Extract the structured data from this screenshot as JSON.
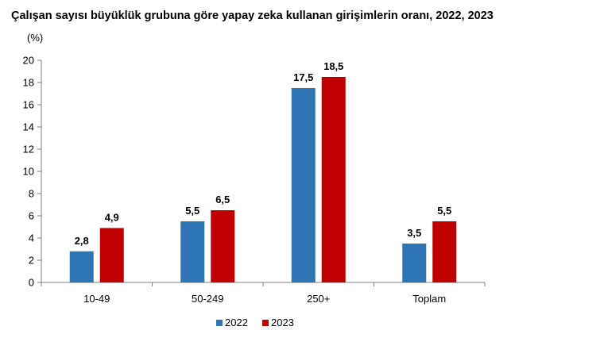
{
  "chart_data": {
    "type": "bar",
    "title": "Çalışan sayısı büyüklük grubuna göre yapay zeka kullanan girişimlerin oranı, 2022, 2023",
    "unit_label": "(%)",
    "xlabel": "",
    "ylabel": "",
    "categories": [
      "10-49",
      "50-249",
      "250+",
      "Toplam"
    ],
    "series": [
      {
        "name": "2022",
        "color": "#2E75B6",
        "values": [
          2.8,
          5.5,
          17.5,
          3.5
        ],
        "labels": [
          "2,8",
          "5,5",
          "17,5",
          "3,5"
        ]
      },
      {
        "name": "2023",
        "color": "#C00000",
        "values": [
          4.9,
          6.5,
          18.5,
          5.5
        ],
        "labels": [
          "4,9",
          "6,5",
          "18,5",
          "5,5"
        ]
      }
    ],
    "ylim": [
      0,
      20
    ],
    "yticks": [
      0,
      2,
      4,
      6,
      8,
      10,
      12,
      14,
      16,
      18,
      20
    ],
    "grid": false,
    "legend_position": "bottom"
  }
}
